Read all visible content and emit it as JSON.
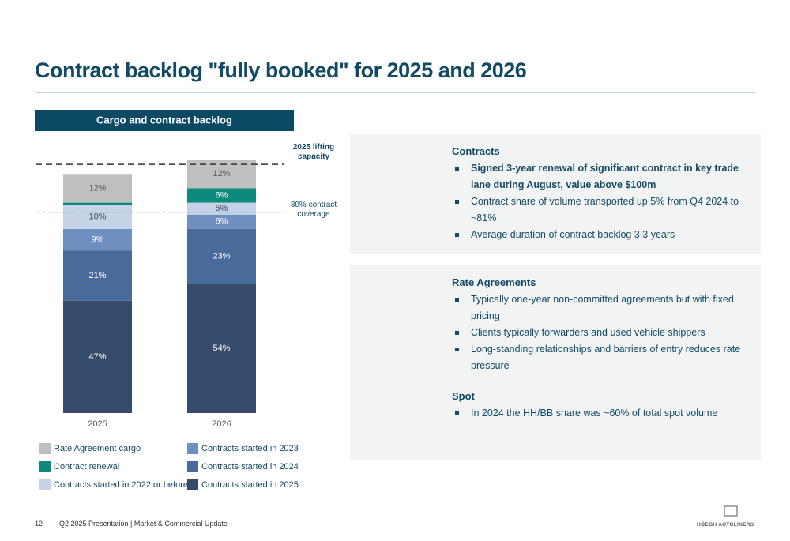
{
  "title": "Contract backlog \"fully booked\" for 2025 and 2026",
  "chart_data": {
    "type": "bar",
    "stacked": true,
    "title": "Cargo and contract backlog",
    "categories": [
      "2025",
      "2026"
    ],
    "series": [
      {
        "name": "Contracts started in 2025",
        "color": "#364a6b",
        "values": [
          47,
          54
        ],
        "value_labels": [
          "47%",
          "54%"
        ]
      },
      {
        "name": "Contracts started in 2024",
        "color": "#4a6a9b",
        "values": [
          21,
          23
        ],
        "value_labels": [
          "21%",
          "23%"
        ]
      },
      {
        "name": "Contracts started in 2023",
        "color": "#6f8fc1",
        "values": [
          9,
          6
        ],
        "value_labels": [
          "9%",
          "6%"
        ]
      },
      {
        "name": "Contracts started in 2022 or before",
        "color": "#c6d3e6",
        "values": [
          10,
          5
        ],
        "value_labels": [
          "10%",
          "5%"
        ]
      },
      {
        "name": "Contract renewal",
        "color": "#0e8a7c",
        "values": [
          1,
          6
        ],
        "value_labels": [
          null,
          "6%"
        ]
      },
      {
        "name": "Rate Agreement cargo",
        "color": "#bfbfbf",
        "values": [
          12,
          12
        ],
        "value_labels": [
          "12%",
          "12%"
        ]
      }
    ],
    "ylim": [
      0,
      110
    ],
    "annotations": [
      {
        "text": "2025 lifting capacity",
        "value": 104,
        "style": "dashed-dark"
      },
      {
        "text": "80% contract coverage",
        "value": 84,
        "style": "dashed-light"
      }
    ]
  },
  "panels": [
    {
      "sections": [
        {
          "heading": "Contracts",
          "bullets": [
            "Signed 3-year renewal of significant contract in key trade lane during August, value above $100m",
            "Contract share of volume transported up 5% from Q4 2024 to ~81%",
            "Average duration of contract backlog 3.3 years"
          ]
        }
      ]
    },
    {
      "sections": [
        {
          "heading": "Rate Agreements",
          "bullets": [
            "Typically one-year non-committed agreements but with fixed pricing",
            "Clients typically forwarders and used vehicle shippers",
            "Long-standing relationships and barriers of entry reduces rate pressure"
          ]
        },
        {
          "heading": "Spot",
          "bullets": [
            "In 2024 the HH/BB share was ~60% of total spot volume"
          ]
        }
      ]
    }
  ],
  "footer": {
    "page": "12",
    "text": "Q2 2025 Presentation | Market & Commercial Update",
    "logo": "HÖEGH AUTOLINERS"
  }
}
